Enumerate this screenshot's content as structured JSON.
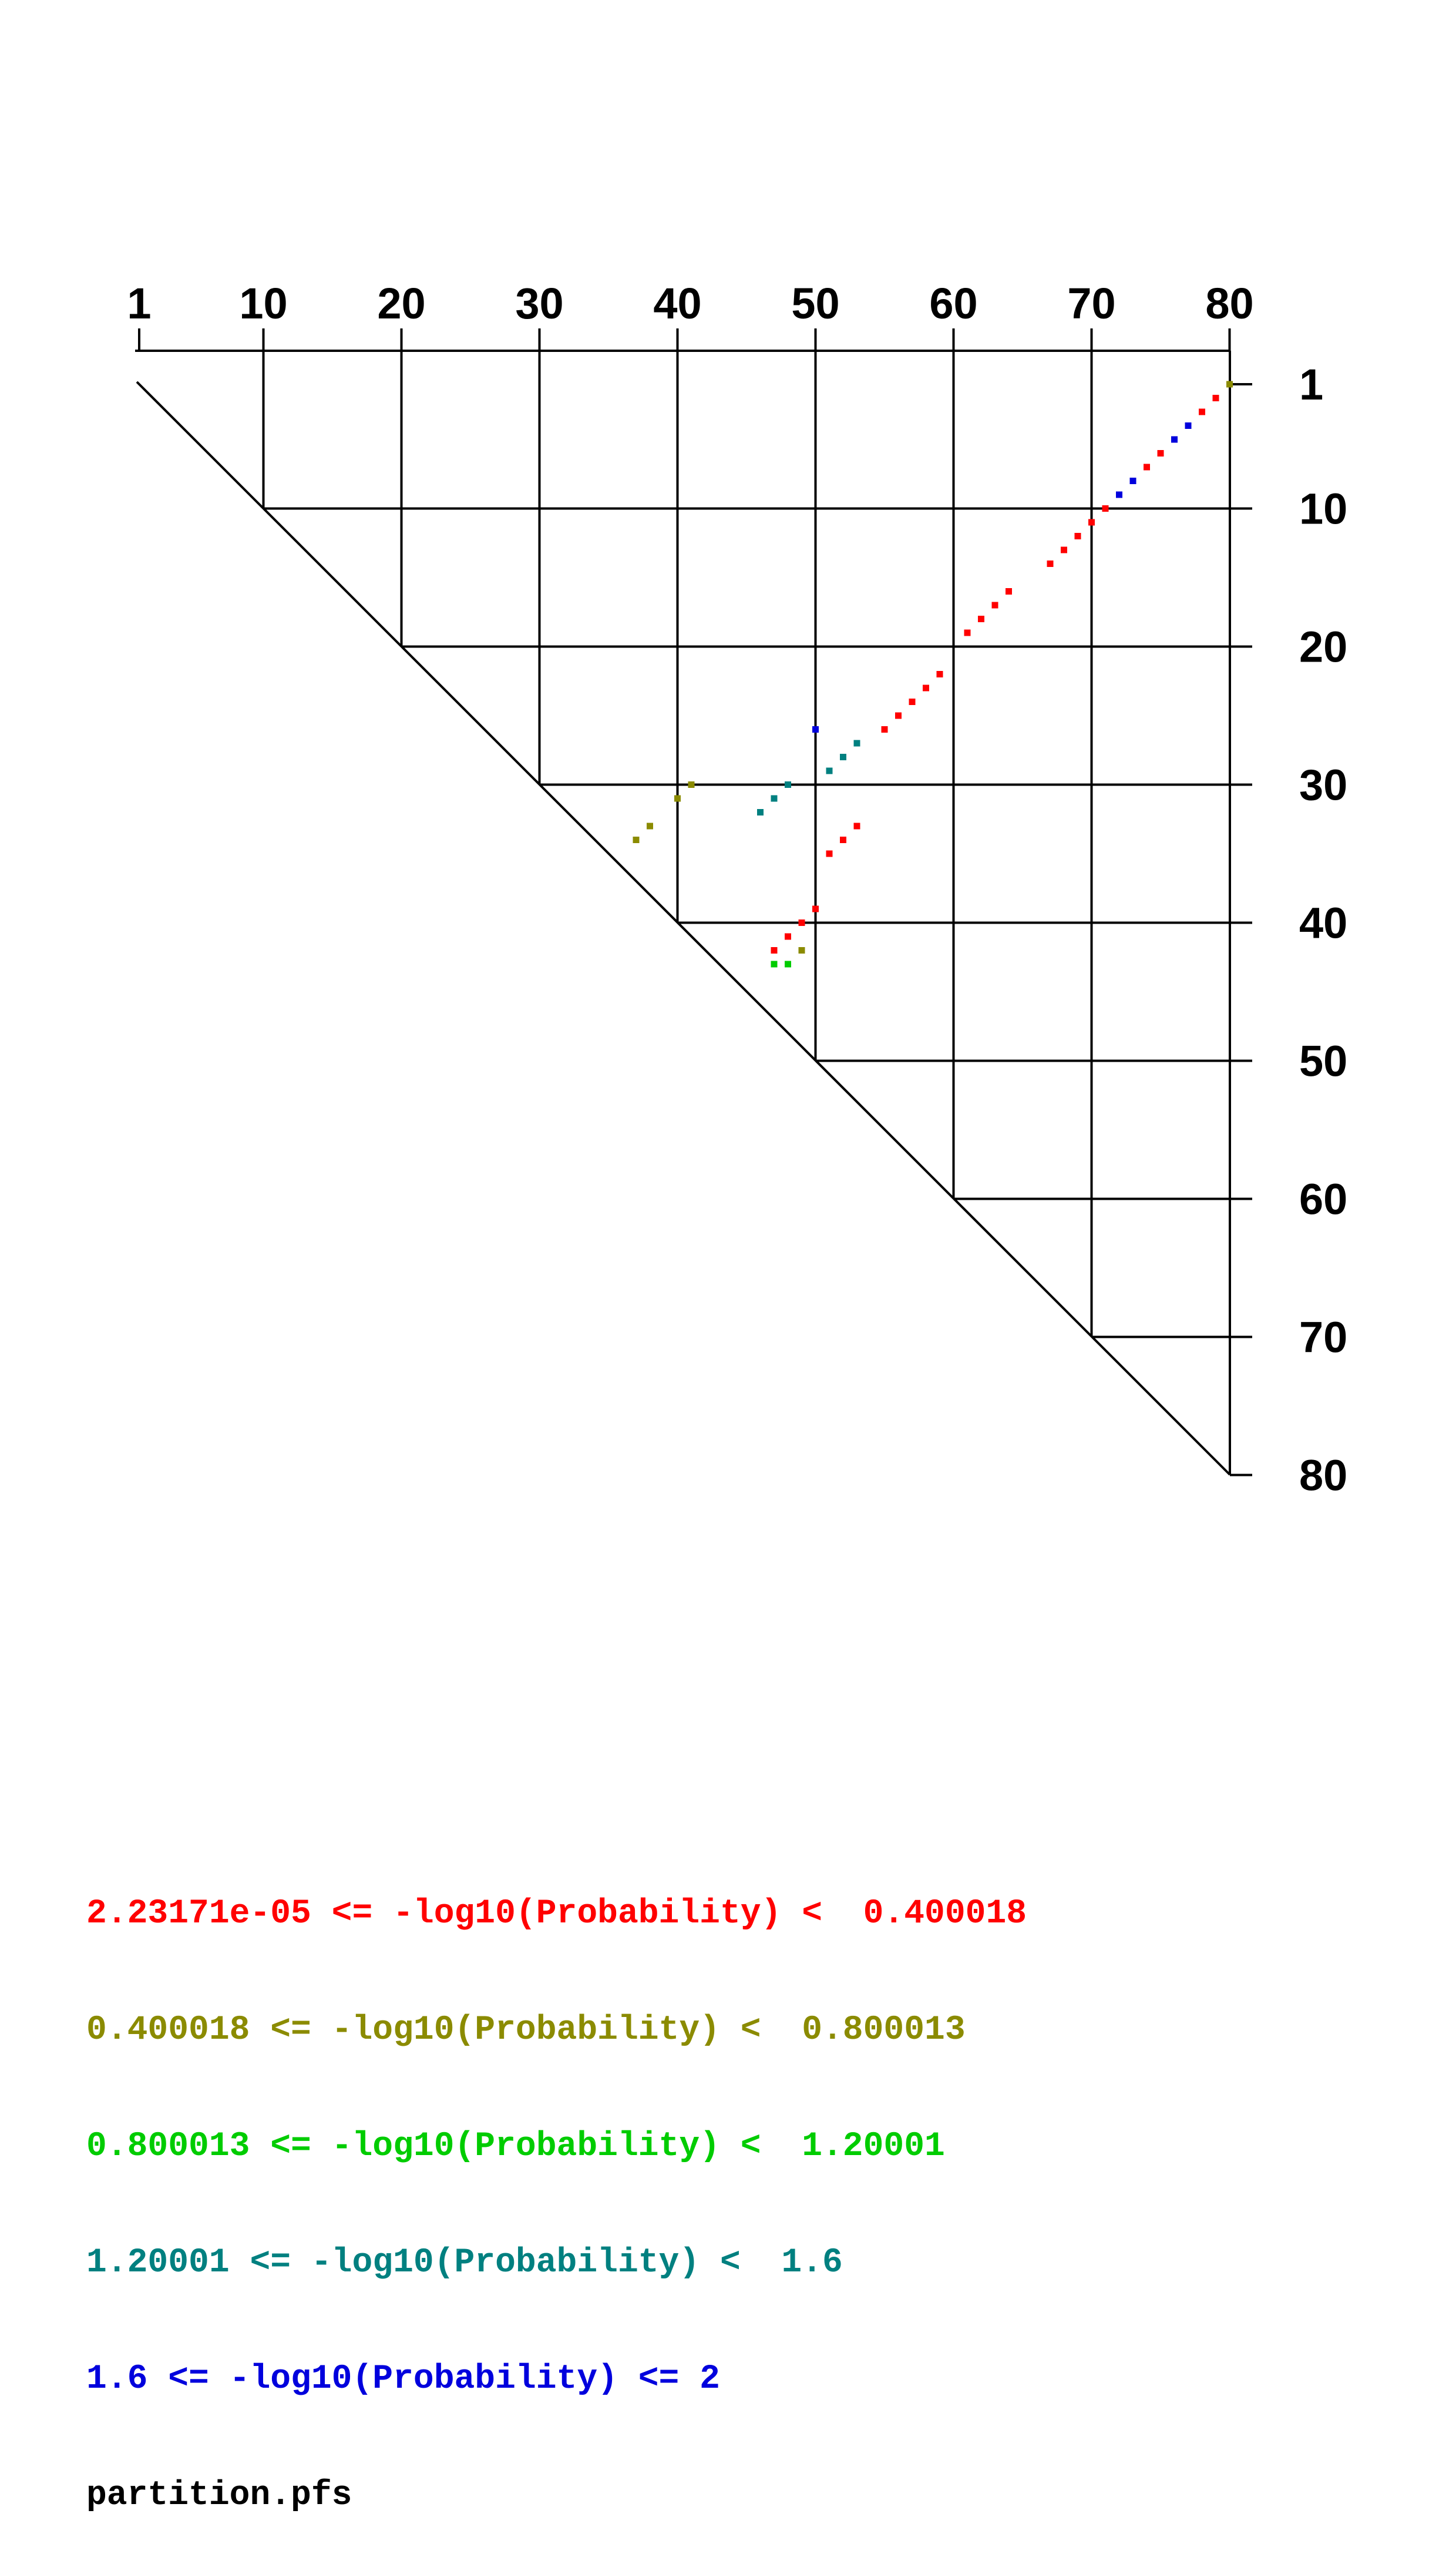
{
  "chart_data": {
    "type": "scatter",
    "title": "",
    "xlabel": "",
    "ylabel": "",
    "description": "Triangular RNA base-pair probability dot plot; x axis (columns, top) and y axis (rows, right) are nucleotide positions; colored squares mark base pairs binned by -log10(Probability).",
    "x_axis_position": "top",
    "y_axis_position": "right",
    "x_ticks": [
      1,
      10,
      20,
      30,
      40,
      50,
      60,
      70,
      80
    ],
    "y_ticks": [
      1,
      10,
      20,
      30,
      40,
      50,
      60,
      70,
      80
    ],
    "xlim": [
      1,
      80
    ],
    "ylim": [
      1,
      80
    ],
    "grid": true,
    "diagonal": true,
    "legend_position": "bottom-left",
    "levels": [
      {
        "name": "bin-1",
        "color": "#ff0000",
        "label": "2.23171e-05 <= -log10(Probability) <  0.400018"
      },
      {
        "name": "bin-2",
        "color": "#8b8b00",
        "label": "0.400018 <= -log10(Probability) <  0.800013"
      },
      {
        "name": "bin-3",
        "color": "#00cc00",
        "label": "0.800013 <= -log10(Probability) <  1.20001"
      },
      {
        "name": "bin-4",
        "color": "#008080",
        "label": "1.20001 <= -log10(Probability) <  1.6"
      },
      {
        "name": "bin-5",
        "color": "#0000dd",
        "label": "1.6 <= -log10(Probability) <= 2"
      }
    ],
    "points": [
      {
        "i": 1,
        "j": 80,
        "level": 2
      },
      {
        "i": 2,
        "j": 79,
        "level": 1
      },
      {
        "i": 3,
        "j": 78,
        "level": 1
      },
      {
        "i": 4,
        "j": 77,
        "level": 5
      },
      {
        "i": 5,
        "j": 76,
        "level": 5
      },
      {
        "i": 6,
        "j": 75,
        "level": 1
      },
      {
        "i": 7,
        "j": 74,
        "level": 1
      },
      {
        "i": 8,
        "j": 73,
        "level": 5
      },
      {
        "i": 9,
        "j": 72,
        "level": 5
      },
      {
        "i": 10,
        "j": 71,
        "level": 1
      },
      {
        "i": 11,
        "j": 70,
        "level": 1
      },
      {
        "i": 12,
        "j": 69,
        "level": 1
      },
      {
        "i": 13,
        "j": 68,
        "level": 1
      },
      {
        "i": 14,
        "j": 67,
        "level": 1
      },
      {
        "i": 16,
        "j": 64,
        "level": 1
      },
      {
        "i": 17,
        "j": 63,
        "level": 1
      },
      {
        "i": 18,
        "j": 62,
        "level": 1
      },
      {
        "i": 19,
        "j": 61,
        "level": 1
      },
      {
        "i": 22,
        "j": 59,
        "level": 1
      },
      {
        "i": 23,
        "j": 58,
        "level": 1
      },
      {
        "i": 24,
        "j": 57,
        "level": 1
      },
      {
        "i": 25,
        "j": 56,
        "level": 1
      },
      {
        "i": 26,
        "j": 55,
        "level": 1
      },
      {
        "i": 26,
        "j": 50,
        "level": 5
      },
      {
        "i": 27,
        "j": 53,
        "level": 4
      },
      {
        "i": 28,
        "j": 52,
        "level": 4
      },
      {
        "i": 29,
        "j": 51,
        "level": 4
      },
      {
        "i": 30,
        "j": 48,
        "level": 4
      },
      {
        "i": 31,
        "j": 47,
        "level": 4
      },
      {
        "i": 32,
        "j": 46,
        "level": 4
      },
      {
        "i": 30,
        "j": 41,
        "level": 2
      },
      {
        "i": 31,
        "j": 40,
        "level": 2
      },
      {
        "i": 33,
        "j": 38,
        "level": 2
      },
      {
        "i": 34,
        "j": 37,
        "level": 2
      },
      {
        "i": 33,
        "j": 53,
        "level": 1
      },
      {
        "i": 34,
        "j": 52,
        "level": 1
      },
      {
        "i": 35,
        "j": 51,
        "level": 1
      },
      {
        "i": 39,
        "j": 50,
        "level": 1
      },
      {
        "i": 40,
        "j": 49,
        "level": 1
      },
      {
        "i": 41,
        "j": 48,
        "level": 1
      },
      {
        "i": 42,
        "j": 47,
        "level": 1
      },
      {
        "i": 42,
        "j": 49,
        "level": 2
      },
      {
        "i": 43,
        "j": 47,
        "level": 3
      },
      {
        "i": 43,
        "j": 48,
        "level": 3
      }
    ]
  },
  "legend": {
    "filename": "partition.pfs"
  }
}
